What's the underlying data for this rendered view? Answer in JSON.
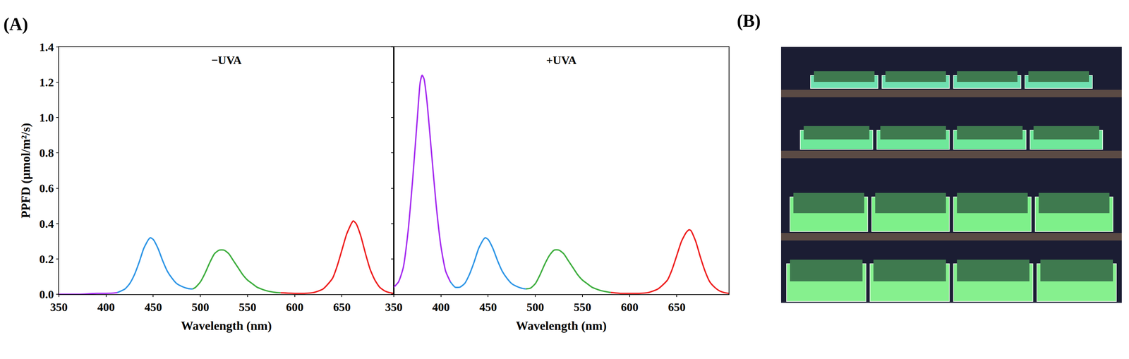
{
  "panel_labels": [
    "(A)",
    "(B)"
  ],
  "chart_data": [
    {
      "type": "line",
      "title": "−UVA",
      "xlabel": "Wavelength (nm)",
      "ylabel": "PPFD (μmol/m²/s)",
      "xlim": [
        350,
        705
      ],
      "xticks": [
        350,
        400,
        450,
        500,
        550,
        600,
        650
      ],
      "ylim": [
        0,
        1.4
      ],
      "yticks": [
        {
          "value": 0,
          "label": "0.0"
        },
        0.2,
        0.4,
        0.6,
        0.8,
        {
          "value": 1,
          "label": "1.0"
        },
        1.2,
        1.4
      ],
      "grid": false,
      "series": [
        {
          "color": "#a52cf0",
          "x": [
            350,
            360,
            370,
            380,
            390,
            400,
            410,
            412
          ],
          "values": [
            0,
            0,
            0,
            0.002,
            0.005,
            0.005,
            0.008,
            0.01
          ]
        },
        {
          "color": "#2f96e6",
          "x": [
            412,
            420,
            425,
            430,
            435,
            440,
            445,
            447,
            450,
            455,
            460,
            465,
            470,
            475,
            480,
            485,
            490,
            492
          ],
          "values": [
            0.01,
            0.03,
            0.06,
            0.11,
            0.18,
            0.26,
            0.31,
            0.32,
            0.31,
            0.26,
            0.19,
            0.13,
            0.09,
            0.06,
            0.045,
            0.035,
            0.03,
            0.03
          ]
        },
        {
          "color": "#3fae3f",
          "x": [
            492,
            495,
            500,
            505,
            510,
            515,
            520,
            525,
            530,
            535,
            540,
            545,
            550,
            555,
            560,
            570,
            580,
            585
          ],
          "values": [
            0.03,
            0.04,
            0.07,
            0.12,
            0.18,
            0.23,
            0.25,
            0.25,
            0.23,
            0.19,
            0.15,
            0.11,
            0.08,
            0.06,
            0.04,
            0.02,
            0.01,
            0.008
          ]
        },
        {
          "color": "#ee2020",
          "x": [
            585,
            600,
            610,
            620,
            630,
            640,
            645,
            650,
            655,
            660,
            662,
            665,
            670,
            675,
            680,
            685,
            690,
            695,
            700,
            705
          ],
          "values": [
            0.008,
            0.005,
            0.005,
            0.01,
            0.03,
            0.09,
            0.16,
            0.25,
            0.34,
            0.4,
            0.415,
            0.4,
            0.33,
            0.23,
            0.14,
            0.08,
            0.04,
            0.02,
            0.01,
            0.005
          ]
        }
      ]
    },
    {
      "type": "line",
      "title": "+UVA",
      "xlabel": "Wavelength (nm)",
      "xlim": [
        350,
        705
      ],
      "xticks": [
        350,
        400,
        450,
        500,
        550,
        600,
        650
      ],
      "ylim": [
        0,
        1.4
      ],
      "yticks": [
        {
          "value": 0,
          "label": "0.0"
        },
        0.2,
        0.4,
        0.6,
        0.8,
        {
          "value": 1,
          "label": "1.0"
        },
        1.2,
        1.4
      ],
      "tick_labels": "x",
      "grid": false,
      "series": [
        {
          "color": "#a52cf0",
          "x": [
            350,
            355,
            360,
            365,
            370,
            375,
            378,
            380,
            382,
            385,
            390,
            395,
            400,
            405,
            410
          ],
          "values": [
            0.04,
            0.07,
            0.15,
            0.35,
            0.65,
            1.0,
            1.2,
            1.24,
            1.22,
            1.1,
            0.8,
            0.5,
            0.27,
            0.13,
            0.07
          ]
        },
        {
          "color": "#2f96e6",
          "x": [
            410,
            415,
            420,
            425,
            430,
            435,
            440,
            445,
            447,
            450,
            455,
            460,
            465,
            470,
            475,
            480,
            485,
            490
          ],
          "values": [
            0.07,
            0.04,
            0.04,
            0.06,
            0.11,
            0.18,
            0.26,
            0.31,
            0.32,
            0.31,
            0.26,
            0.19,
            0.13,
            0.09,
            0.06,
            0.045,
            0.035,
            0.03
          ]
        },
        {
          "color": "#3fae3f",
          "x": [
            490,
            495,
            500,
            505,
            510,
            515,
            520,
            525,
            530,
            535,
            540,
            545,
            550,
            555,
            560,
            570,
            580
          ],
          "values": [
            0.03,
            0.035,
            0.06,
            0.11,
            0.17,
            0.22,
            0.25,
            0.25,
            0.23,
            0.19,
            0.15,
            0.11,
            0.08,
            0.06,
            0.04,
            0.02,
            0.01
          ]
        },
        {
          "color": "#ee2020",
          "x": [
            580,
            590,
            600,
            610,
            620,
            630,
            640,
            645,
            650,
            655,
            660,
            663,
            665,
            670,
            675,
            680,
            685,
            690,
            695,
            700,
            705
          ],
          "values": [
            0.01,
            0.005,
            0.005,
            0.005,
            0.01,
            0.03,
            0.08,
            0.14,
            0.22,
            0.3,
            0.35,
            0.365,
            0.36,
            0.3,
            0.21,
            0.13,
            0.07,
            0.04,
            0.02,
            0.01,
            0.005
          ]
        }
      ]
    }
  ]
}
